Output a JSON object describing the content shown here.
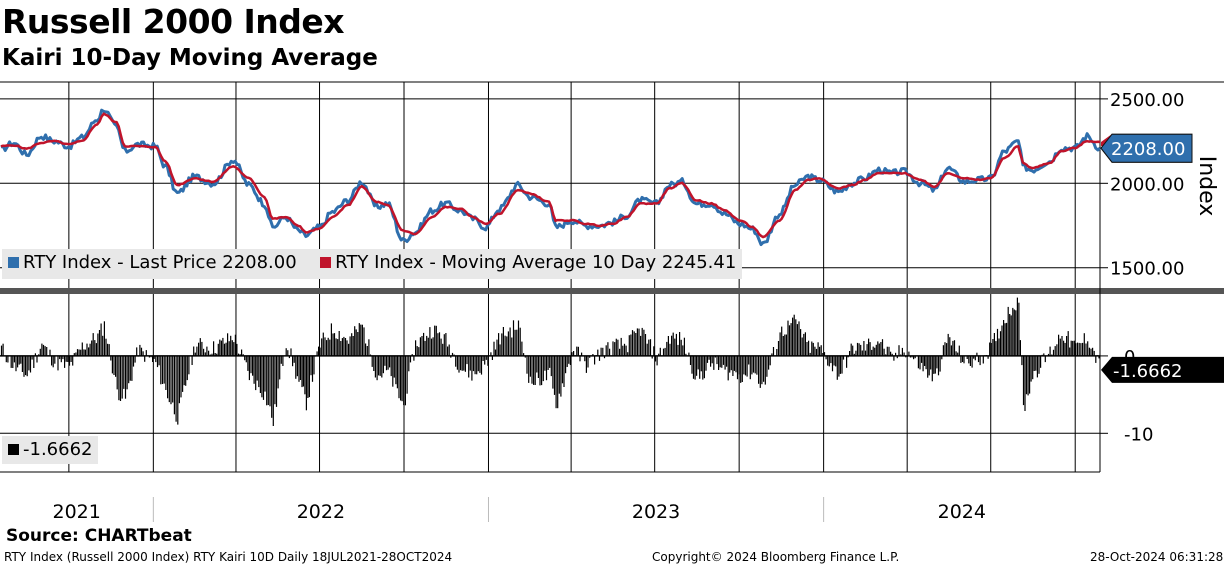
{
  "title": "Russell 2000 Index",
  "subtitle": "Kairi 10-Day Moving Average",
  "source": "Source: CHARTbeat",
  "footer": {
    "left": "RTY Index (Russell 2000 Index) RTY Kairi 10D  Daily 18JUL2021-28OCT2024",
    "center": "Copyright© 2024 Bloomberg Finance L.P.",
    "right": "28-Oct-2024 06:31:28"
  },
  "colors": {
    "price": "#2f6fad",
    "ma": "#c0142b",
    "kairi": "#000000"
  },
  "chart_data": [
    {
      "type": "line",
      "ylabel": "Index",
      "ylim": [
        1380,
        2600
      ],
      "yticks": [
        1500,
        2000,
        2500
      ],
      "ytick_labels": [
        "1500.00",
        "2000.00",
        "2500.00"
      ],
      "xlim": [
        "2021-07-18",
        "2024-10-28"
      ],
      "grid": true,
      "current_label": "2208.00",
      "x": [
        "2021-07-19",
        "2021-08-02",
        "2021-08-16",
        "2021-09-01",
        "2021-09-15",
        "2021-10-01",
        "2021-10-15",
        "2021-11-01",
        "2021-11-08",
        "2021-11-22",
        "2021-12-01",
        "2021-12-15",
        "2022-01-03",
        "2022-01-14",
        "2022-01-27",
        "2022-02-15",
        "2022-03-07",
        "2022-03-29",
        "2022-04-15",
        "2022-05-02",
        "2022-05-11",
        "2022-05-25",
        "2022-06-08",
        "2022-06-16",
        "2022-07-01",
        "2022-07-15",
        "2022-08-01",
        "2022-08-16",
        "2022-09-01",
        "2022-09-13",
        "2022-09-30",
        "2022-10-13",
        "2022-11-01",
        "2022-11-15",
        "2022-12-01",
        "2022-12-15",
        "2022-12-29",
        "2023-01-13",
        "2023-02-02",
        "2023-02-15",
        "2023-03-08",
        "2023-03-15",
        "2023-04-03",
        "2023-04-17",
        "2023-05-03",
        "2023-05-16",
        "2023-06-01",
        "2023-06-15",
        "2023-07-03",
        "2023-07-17",
        "2023-07-31",
        "2023-08-15",
        "2023-09-01",
        "2023-09-15",
        "2023-10-02",
        "2023-10-16",
        "2023-10-27",
        "2023-11-14",
        "2023-12-01",
        "2023-12-15",
        "2023-12-27",
        "2024-01-17",
        "2024-02-01",
        "2024-02-15",
        "2024-03-01",
        "2024-03-15",
        "2024-03-28",
        "2024-04-16",
        "2024-05-01",
        "2024-05-15",
        "2024-06-03",
        "2024-06-17",
        "2024-07-01",
        "2024-07-16",
        "2024-07-31",
        "2024-08-05",
        "2024-08-15",
        "2024-09-03",
        "2024-09-16",
        "2024-10-01",
        "2024-10-14",
        "2024-10-28"
      ],
      "series": [
        {
          "name": "RTY Index - Last Price 2208.00",
          "values": [
            2200,
            2240,
            2170,
            2280,
            2250,
            2220,
            2270,
            2380,
            2442,
            2330,
            2190,
            2230,
            2220,
            2100,
            1940,
            2040,
            2000,
            2140,
            1990,
            1880,
            1740,
            1800,
            1720,
            1690,
            1740,
            1830,
            1900,
            2010,
            1860,
            1880,
            1660,
            1710,
            1840,
            1880,
            1840,
            1790,
            1740,
            1850,
            1990,
            1920,
            1880,
            1740,
            1780,
            1750,
            1750,
            1770,
            1810,
            1900,
            1880,
            1990,
            2010,
            1880,
            1880,
            1820,
            1760,
            1730,
            1640,
            1820,
            1990,
            2040,
            2020,
            1950,
            2000,
            2030,
            2080,
            2060,
            2070,
            2000,
            1960,
            2090,
            2010,
            2020,
            2030,
            2190,
            2250,
            2100,
            2080,
            2130,
            2210,
            2210,
            2280,
            2208
          ]
        },
        {
          "name": "RTY Index - Moving Average 10 Day 2245.41",
          "values": [
            2220,
            2225,
            2205,
            2240,
            2250,
            2230,
            2250,
            2350,
            2410,
            2360,
            2220,
            2220,
            2215,
            2130,
            1990,
            2030,
            2010,
            2100,
            2030,
            1920,
            1790,
            1800,
            1750,
            1710,
            1730,
            1800,
            1870,
            1980,
            1890,
            1870,
            1720,
            1700,
            1800,
            1860,
            1850,
            1800,
            1760,
            1820,
            1960,
            1940,
            1890,
            1780,
            1780,
            1760,
            1750,
            1760,
            1800,
            1880,
            1880,
            1970,
            2000,
            1900,
            1880,
            1840,
            1780,
            1740,
            1680,
            1780,
            1960,
            2020,
            2030,
            1970,
            1990,
            2020,
            2060,
            2060,
            2060,
            2020,
            1980,
            2060,
            2030,
            2020,
            2030,
            2150,
            2220,
            2120,
            2090,
            2120,
            2190,
            2210,
            2250,
            2245
          ]
        }
      ]
    },
    {
      "type": "bar",
      "ylim": [
        -15,
        8
      ],
      "yticks": [
        0,
        -10
      ],
      "ytick_labels": [
        "0",
        "-10"
      ],
      "xlim": [
        "2021-07-18",
        "2024-10-28"
      ],
      "grid": true,
      "current_label": "-1.6662",
      "series": [
        {
          "name": "-1.6662"
        }
      ],
      "x": [
        "2021-07-19",
        "2021-08-02",
        "2021-08-16",
        "2021-09-01",
        "2021-09-15",
        "2021-10-01",
        "2021-10-15",
        "2021-11-01",
        "2021-11-08",
        "2021-11-22",
        "2021-12-01",
        "2021-12-15",
        "2022-01-03",
        "2022-01-14",
        "2022-01-27",
        "2022-02-15",
        "2022-03-07",
        "2022-03-29",
        "2022-04-15",
        "2022-05-02",
        "2022-05-11",
        "2022-05-25",
        "2022-06-08",
        "2022-06-16",
        "2022-07-01",
        "2022-07-15",
        "2022-08-01",
        "2022-08-16",
        "2022-09-01",
        "2022-09-13",
        "2022-09-30",
        "2022-10-13",
        "2022-11-01",
        "2022-11-15",
        "2022-12-01",
        "2022-12-15",
        "2022-12-29",
        "2023-01-13",
        "2023-02-02",
        "2023-02-15",
        "2023-03-08",
        "2023-03-15",
        "2023-04-03",
        "2023-04-17",
        "2023-05-03",
        "2023-05-16",
        "2023-06-01",
        "2023-06-15",
        "2023-07-03",
        "2023-07-17",
        "2023-07-31",
        "2023-08-15",
        "2023-09-01",
        "2023-09-15",
        "2023-10-02",
        "2023-10-16",
        "2023-10-27",
        "2023-11-14",
        "2023-12-01",
        "2023-12-15",
        "2023-12-27",
        "2024-01-17",
        "2024-02-01",
        "2024-02-15",
        "2024-03-01",
        "2024-03-15",
        "2024-03-28",
        "2024-04-16",
        "2024-05-01",
        "2024-05-15",
        "2024-06-03",
        "2024-06-17",
        "2024-07-01",
        "2024-07-16",
        "2024-07-31",
        "2024-08-05",
        "2024-08-15",
        "2024-09-03",
        "2024-09-16",
        "2024-10-01",
        "2024-10-14",
        "2024-10-28"
      ],
      "values": [
        1.0,
        -1.5,
        -2.5,
        1.5,
        -0.8,
        -1.5,
        1.2,
        2.5,
        4.0,
        -4.5,
        -5.5,
        0.8,
        -1.0,
        -4.5,
        -8.0,
        1.5,
        1.0,
        2.5,
        -2.5,
        -5.0,
        -8.5,
        2.0,
        -3.5,
        -6.0,
        1.5,
        3.5,
        2.0,
        4.0,
        -2.5,
        -2.0,
        -6.5,
        1.5,
        3.5,
        2.0,
        -1.5,
        -2.5,
        -1.0,
        2.5,
        4.0,
        -3.5,
        -2.5,
        -6.5,
        1.0,
        -1.2,
        0.5,
        1.2,
        1.5,
        3.5,
        -0.5,
        2.5,
        2.0,
        -3.0,
        -1.0,
        -2.0,
        -2.5,
        -2.0,
        -4.0,
        3.0,
        4.5,
        1.2,
        1.0,
        -2.5,
        1.0,
        1.2,
        2.0,
        -0.5,
        1.0,
        -1.5,
        -3.0,
        2.5,
        -1.0,
        -0.5,
        1.0,
        5.0,
        7.5,
        -7.0,
        -2.5,
        0.5,
        3.0,
        1.0,
        2.5,
        -1.6662
      ]
    }
  ],
  "x_axis": {
    "year_labels": [
      "2021",
      "2022",
      "2023",
      "2024"
    ]
  }
}
